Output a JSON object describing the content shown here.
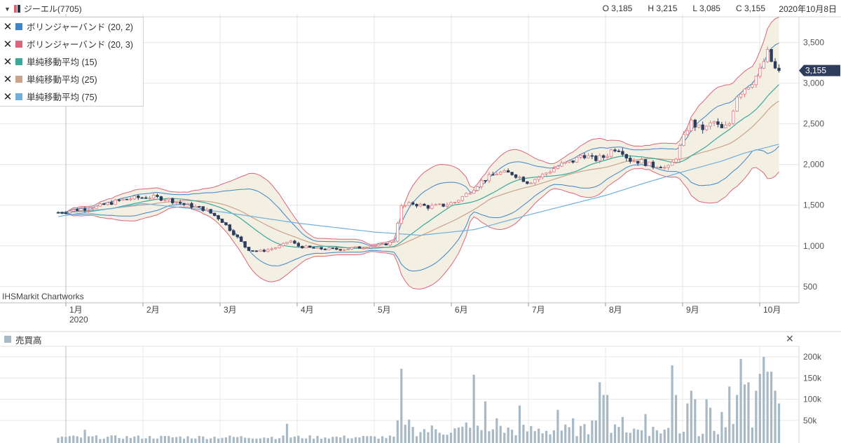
{
  "header": {
    "symbol": "ジーエル(7705)",
    "open": "O 3,185",
    "high": "H 3,215",
    "low": "L 3,085",
    "close": "C 3,155",
    "date": "2020年10月8日"
  },
  "legend": [
    {
      "label": "ボリンジャーバンド (20, 2)",
      "color": "#3f86c6"
    },
    {
      "label": "ボリンジャーバンド (20, 3)",
      "color": "#d9667a"
    },
    {
      "label": "単純移動平均 (15)",
      "color": "#3aa99a"
    },
    {
      "label": "単純移動平均 (25)",
      "color": "#c9a48a"
    },
    {
      "label": "単純移動平均 (75)",
      "color": "#6fb0dc"
    }
  ],
  "credit": "IHSMarkit Chartworks",
  "price_badge": "3,155",
  "volume_title": "売買高",
  "colors": {
    "up": "#e07a84",
    "down": "#2f3d5c",
    "band_fill": "#f3efe3",
    "volume": "#a8b9c6"
  },
  "chart_data": [
    {
      "type": "candlestick",
      "title": "ジーエル(7705)",
      "ylim": [
        300,
        3850
      ],
      "yticks": [
        500,
        1000,
        1500,
        2000,
        2500,
        3000,
        3500
      ],
      "ytick_labels": [
        "500",
        "1,000",
        "1,500",
        "2,000",
        "2,500",
        "3,000",
        "3,500"
      ],
      "xticks": [
        {
          "month": 1,
          "label": "1月",
          "sublabel": "2020"
        },
        {
          "month": 2,
          "label": "2月",
          "sublabel": ""
        },
        {
          "month": 3,
          "label": "3月",
          "sublabel": ""
        },
        {
          "month": 4,
          "label": "4月",
          "sublabel": ""
        },
        {
          "month": 5,
          "label": "5月",
          "sublabel": ""
        },
        {
          "month": 6,
          "label": "6月",
          "sublabel": ""
        },
        {
          "month": 7,
          "label": "7月",
          "sublabel": ""
        },
        {
          "month": 8,
          "label": "8月",
          "sublabel": ""
        },
        {
          "month": 9,
          "label": "9月",
          "sublabel": ""
        },
        {
          "month": 10,
          "label": "10月",
          "sublabel": ""
        }
      ],
      "price_anchors": [
        [
          -0.1,
          1410
        ],
        [
          0.1,
          1440
        ],
        [
          0.4,
          1480
        ],
        [
          0.7,
          1560
        ],
        [
          0.9,
          1590
        ],
        [
          1.1,
          1600
        ],
        [
          1.3,
          1580
        ],
        [
          1.5,
          1520
        ],
        [
          1.8,
          1450
        ],
        [
          2.0,
          1330
        ],
        [
          2.2,
          1130
        ],
        [
          2.35,
          960
        ],
        [
          2.5,
          930
        ],
        [
          2.65,
          960
        ],
        [
          2.8,
          1000
        ],
        [
          2.9,
          1070
        ],
        [
          3.0,
          1000
        ],
        [
          3.2,
          970
        ],
        [
          3.4,
          960
        ],
        [
          3.6,
          960
        ],
        [
          3.9,
          990
        ],
        [
          4.1,
          1010
        ],
        [
          4.25,
          1050
        ],
        [
          4.3,
          1280
        ],
        [
          4.35,
          1480
        ],
        [
          4.5,
          1520
        ],
        [
          4.7,
          1480
        ],
        [
          4.9,
          1500
        ],
        [
          5.05,
          1540
        ],
        [
          5.2,
          1640
        ],
        [
          5.4,
          1800
        ],
        [
          5.6,
          1900
        ],
        [
          5.8,
          1890
        ],
        [
          6.0,
          1780
        ],
        [
          6.2,
          1880
        ],
        [
          6.4,
          1990
        ],
        [
          6.6,
          2050
        ],
        [
          6.7,
          2130
        ],
        [
          6.85,
          2060
        ],
        [
          7.0,
          2100
        ],
        [
          7.1,
          2200
        ],
        [
          7.2,
          2190
        ],
        [
          7.3,
          2060
        ],
        [
          7.5,
          2030
        ],
        [
          7.6,
          1980
        ],
        [
          7.7,
          2000
        ],
        [
          7.8,
          1940
        ],
        [
          7.9,
          2060
        ],
        [
          8.0,
          2300
        ],
        [
          8.1,
          2530
        ],
        [
          8.2,
          2450
        ],
        [
          8.3,
          2440
        ],
        [
          8.4,
          2530
        ],
        [
          8.5,
          2430
        ],
        [
          8.6,
          2480
        ],
        [
          8.7,
          2850
        ],
        [
          8.8,
          2940
        ],
        [
          8.9,
          3020
        ],
        [
          9.0,
          3140
        ],
        [
          9.05,
          3260
        ],
        [
          9.1,
          3370
        ],
        [
          9.2,
          3170
        ],
        [
          9.25,
          3155
        ]
      ],
      "sma75_anchors": [
        [
          -0.1,
          1360
        ],
        [
          1.0,
          1520
        ],
        [
          2.0,
          1420
        ],
        [
          3.0,
          1280
        ],
        [
          4.0,
          1170
        ],
        [
          4.6,
          1130
        ],
        [
          5.3,
          1200
        ],
        [
          6.0,
          1380
        ],
        [
          7.0,
          1620
        ],
        [
          7.5,
          1770
        ],
        [
          8.0,
          1910
        ],
        [
          8.5,
          2040
        ],
        [
          8.8,
          2140
        ],
        [
          9.25,
          2250
        ]
      ],
      "closing_price": 3155
    },
    {
      "type": "bar",
      "title": "売買高",
      "ylim": [
        0,
        225000
      ],
      "yticks": [
        50000,
        100000,
        150000,
        200000
      ],
      "ytick_labels": [
        "50k",
        "100k",
        "150k",
        "200k"
      ],
      "spikes": [
        {
          "month": 0.25,
          "value": 28000
        },
        {
          "month": 2.85,
          "value": 42000
        },
        {
          "month": 4.3,
          "value": 50000
        },
        {
          "month": 4.35,
          "value": 172000
        },
        {
          "month": 4.45,
          "value": 52000
        },
        {
          "month": 5.2,
          "value": 45000
        },
        {
          "month": 5.3,
          "value": 158000
        },
        {
          "month": 5.45,
          "value": 95000
        },
        {
          "month": 5.6,
          "value": 55000
        },
        {
          "month": 5.9,
          "value": 85000
        },
        {
          "month": 6.4,
          "value": 75000
        },
        {
          "month": 6.6,
          "value": 55000
        },
        {
          "month": 6.85,
          "value": 50000
        },
        {
          "month": 6.95,
          "value": 140000
        },
        {
          "month": 7.0,
          "value": 110000
        },
        {
          "month": 7.2,
          "value": 58000
        },
        {
          "month": 7.5,
          "value": 65000
        },
        {
          "month": 7.85,
          "value": 180000
        },
        {
          "month": 7.9,
          "value": 110000
        },
        {
          "month": 8.05,
          "value": 90000
        },
        {
          "month": 8.1,
          "value": 120000
        },
        {
          "month": 8.15,
          "value": 100000
        },
        {
          "month": 8.3,
          "value": 100000
        },
        {
          "month": 8.35,
          "value": 80000
        },
        {
          "month": 8.5,
          "value": 70000
        },
        {
          "month": 8.6,
          "value": 130000
        },
        {
          "month": 8.7,
          "value": 110000
        },
        {
          "month": 8.75,
          "value": 195000
        },
        {
          "month": 8.8,
          "value": 135000
        },
        {
          "month": 8.85,
          "value": 140000
        },
        {
          "month": 8.95,
          "value": 120000
        },
        {
          "month": 9.0,
          "value": 160000
        },
        {
          "month": 9.05,
          "value": 200000
        },
        {
          "month": 9.1,
          "value": 165000
        },
        {
          "month": 9.15,
          "value": 165000
        },
        {
          "month": 9.2,
          "value": 120000
        },
        {
          "month": 9.25,
          "value": 90000
        }
      ]
    }
  ]
}
